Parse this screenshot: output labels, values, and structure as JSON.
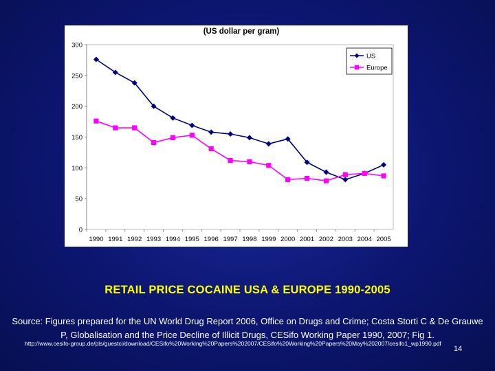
{
  "slide": {
    "title": "RETAIL PRICE COCAINE USA & EUROPE 1990-2005",
    "source": "Source: Figures prepared for the UN World Drug Report 2006, Office on Drugs and Crime; Costa Storti C & De Grauwe P, Globalisation and the Price Decline of Illicit Drugs, CESifo Working Paper 1990, 2007; Fig 1.",
    "url": "http://www.cesifo-group.de/pls/guestci/download/CESifo%20Working%20Papers%202007/CESifo%20Working%20Papers%20May%202007/cesifo1_wp1990.pdf",
    "page_number": "14",
    "colors": {
      "background": "#0c1670",
      "title": "#ffff00",
      "text": "#ffffff"
    }
  },
  "chart_data": {
    "type": "line",
    "title": "(US dollar per gram)",
    "xlabel": "",
    "ylabel": "",
    "x": [
      "1990",
      "1991",
      "1992",
      "1993",
      "1994",
      "1995",
      "1996",
      "1997",
      "1998",
      "1999",
      "2000",
      "2001",
      "2002",
      "2003",
      "2004",
      "2005"
    ],
    "y_ticks": [
      "300",
      "250",
      "200",
      "150",
      "100",
      "50",
      "0"
    ],
    "ylim": [
      0,
      300
    ],
    "grid": false,
    "legend_position": "top-right",
    "series": [
      {
        "name": "US",
        "color": "#000080",
        "marker": "diamond",
        "values": [
          276,
          255,
          238,
          200,
          181,
          169,
          158,
          155,
          149,
          139,
          147,
          109,
          93,
          81,
          91,
          105
        ]
      },
      {
        "name": "Europe",
        "color": "#ff00ff",
        "marker": "square",
        "values": [
          176,
          165,
          165,
          141,
          149,
          153,
          131,
          112,
          110,
          104,
          81,
          83,
          79,
          89,
          91,
          87
        ]
      }
    ]
  }
}
